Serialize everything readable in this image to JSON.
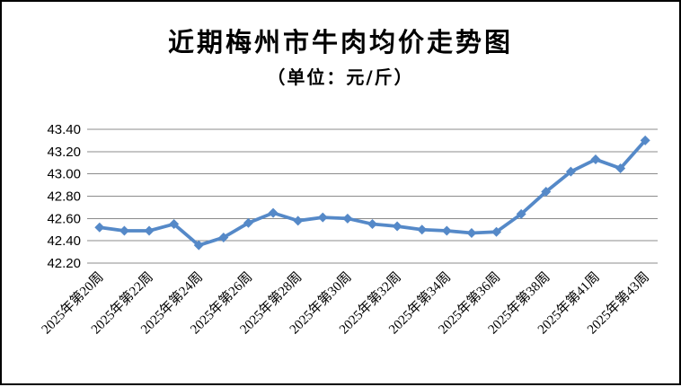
{
  "title": "近期梅州市牛肉均价走势图",
  "subtitle": "（单位：元/斤）",
  "colors": {
    "line": "#5589C8",
    "marker": "#5589C8",
    "gridline": "#8C8C8C",
    "text": "#000000",
    "background": "#FFFFFF",
    "frame_border": "#000000"
  },
  "chart_data": {
    "type": "line",
    "title": "近期梅州市牛肉均价走势图",
    "subtitle": "（单位：元/斤）",
    "unit": "元/斤",
    "categories": [
      "2025年第20周",
      "2025年第21周",
      "2025年第22周",
      "2025年第23周",
      "2025年第24周",
      "2025年第25周",
      "2025年第26周",
      "2025年第27周",
      "2025年第28周",
      "2025年第29周",
      "2025年第30周",
      "2025年第31周",
      "2025年第32周",
      "2025年第33周",
      "2025年第34周",
      "2025年第35周",
      "2025年第36周",
      "2025年第37周",
      "2025年第38周",
      "2025年第39周",
      "2025年第41周",
      "2025年第42周",
      "2025年第43周"
    ],
    "values": [
      42.52,
      42.49,
      42.49,
      42.55,
      42.36,
      42.43,
      42.56,
      42.65,
      42.58,
      42.61,
      42.6,
      42.55,
      42.53,
      42.5,
      42.49,
      42.47,
      42.48,
      42.64,
      42.84,
      43.02,
      43.13,
      43.05,
      43.3
    ],
    "x_tick_labels": [
      "2025年第20周",
      "2025年第22周",
      "2025年第24周",
      "2025年第26周",
      "2025年第28周",
      "2025年第30周",
      "2025年第32周",
      "2025年第34周",
      "2025年第36周",
      "2025年第38周",
      "2025年第41周",
      "2025年第43周"
    ],
    "x_tick_every": 2,
    "x_tick_rotation_deg": -45,
    "y_ticks": [
      42.2,
      42.4,
      42.6,
      42.8,
      43.0,
      43.2,
      43.4
    ],
    "y_tick_labels": [
      "42.20",
      "42.40",
      "42.60",
      "42.80",
      "43.00",
      "43.20",
      "43.40"
    ],
    "ylim": [
      42.2,
      43.4
    ],
    "grid": "horizontal",
    "legend": "none",
    "marker_shape": "diamond"
  }
}
